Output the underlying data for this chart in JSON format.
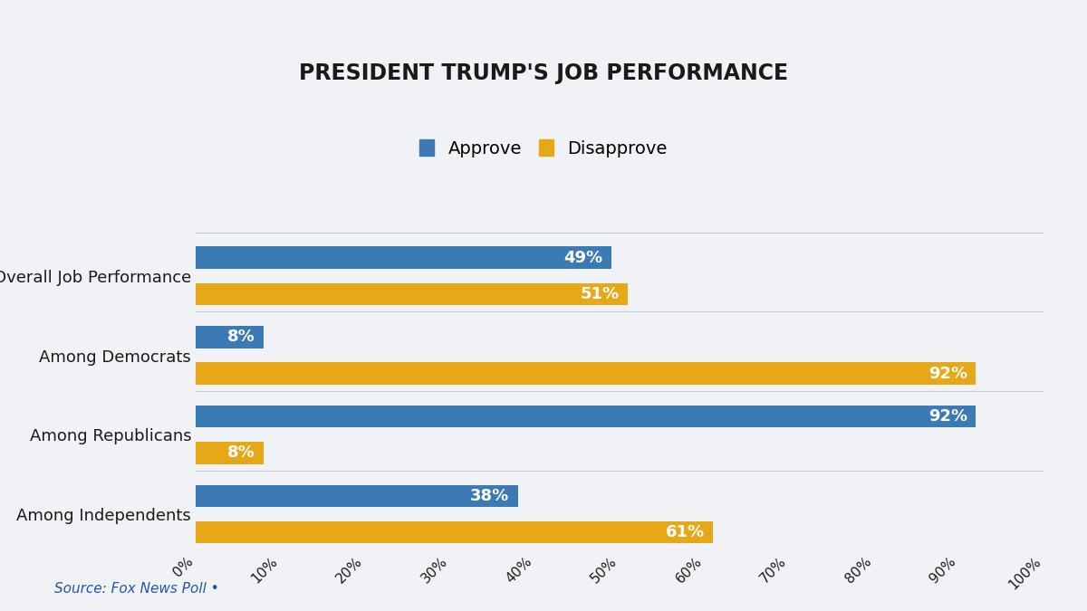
{
  "title": "PRESIDENT TRUMP'S JOB PERFORMANCE",
  "categories": [
    "Overall Job Performance",
    "Among Democrats",
    "Among Republicans",
    "Among Independents"
  ],
  "approve": [
    49,
    8,
    92,
    38
  ],
  "disapprove": [
    51,
    92,
    8,
    61
  ],
  "approve_color": "#3b7ab5",
  "disapprove_color": "#e6a817",
  "background_color": "#f0f2f5",
  "bar_height": 0.28,
  "xlim": [
    0,
    100
  ],
  "xticks": [
    0,
    10,
    20,
    30,
    40,
    50,
    60,
    70,
    80,
    90,
    100
  ],
  "source_text": "Source: Fox News Poll •",
  "legend_approve": "Approve",
  "legend_disapprove": "Disapprove",
  "title_fontsize": 17,
  "label_fontsize": 13,
  "tick_fontsize": 11,
  "source_fontsize": 11,
  "bar_label_fontsize": 13,
  "text_color": "#1a1a1a",
  "grid_color": "#cccccc",
  "source_color": "#2255aa",
  "legend_fontsize": 14
}
